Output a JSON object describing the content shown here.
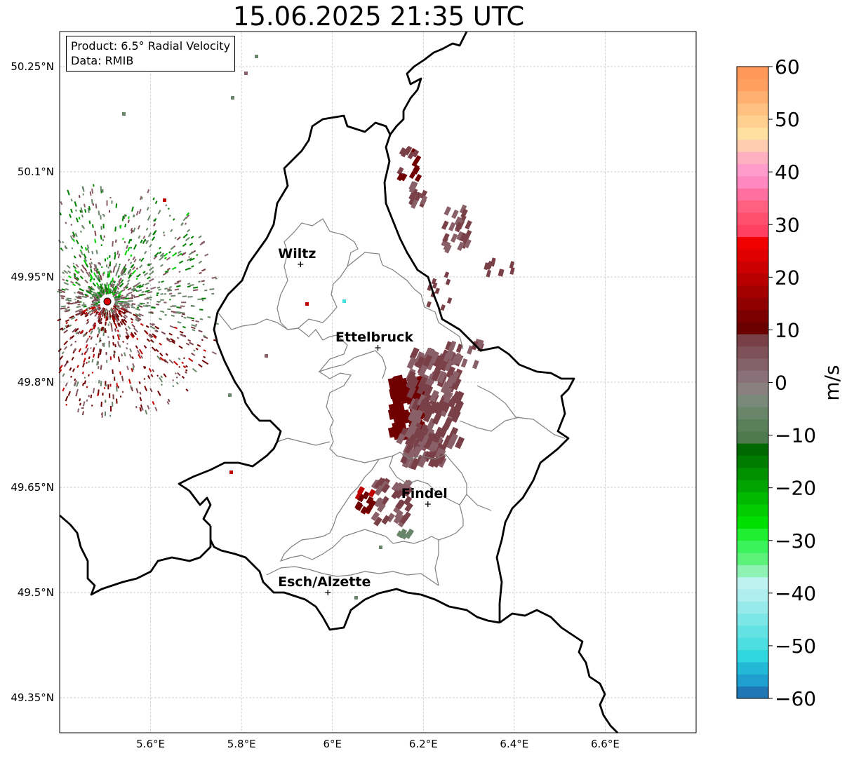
{
  "title": "15.06.2025 21:35 UTC",
  "info_box": {
    "product": "Product: 6.5° Radial Velocity",
    "data_source": "Data: RMIB"
  },
  "axes": {
    "lon_ticks": [
      "5.6°E",
      "5.8°E",
      "6°E",
      "6.2°E",
      "6.4°E",
      "6.6°E"
    ],
    "lat_ticks": [
      "50.25°N",
      "50.1°N",
      "49.95°N",
      "49.8°N",
      "49.65°N",
      "49.5°N",
      "49.35°N"
    ],
    "lon_values": [
      5.6,
      5.8,
      6.0,
      6.2,
      6.4,
      6.6
    ],
    "lat_values": [
      50.25,
      50.1,
      49.95,
      49.8,
      49.65,
      49.5,
      49.35
    ],
    "lon_range": [
      5.4,
      6.8
    ],
    "lat_range": [
      49.3,
      50.3
    ],
    "grid": true
  },
  "cities": [
    {
      "name": "Wiltz",
      "lon": 5.93,
      "lat": 49.968
    },
    {
      "name": "Ettelbruck",
      "lon": 6.1,
      "lat": 49.849
    },
    {
      "name": "Findel",
      "lon": 6.21,
      "lat": 49.626
    },
    {
      "name": "Esch/Alzette",
      "lon": 5.99,
      "lat": 49.5
    }
  ],
  "radar_site": {
    "lon": 5.505,
    "lat": 49.915,
    "color": "#e00000"
  },
  "colorbar": {
    "label": "m/s",
    "min": -60,
    "max": 60,
    "ticks": [
      "60",
      "50",
      "40",
      "30",
      "20",
      "10",
      "0",
      "−10",
      "−20",
      "−30",
      "−40",
      "−50",
      "−60"
    ],
    "tick_values": [
      60,
      50,
      40,
      30,
      20,
      10,
      0,
      -10,
      -20,
      -30,
      -40,
      -50,
      -60
    ],
    "colors_bottom_to_top": [
      "#1f77b4",
      "#1f9fd0",
      "#22b8d6",
      "#2fd6de",
      "#4cdee0",
      "#62e2e2",
      "#7de6e6",
      "#97eaea",
      "#aeeeee",
      "#bef2f0",
      "#8ef2b4",
      "#5cf27a",
      "#3af25a",
      "#20ee30",
      "#00e000",
      "#00cc00",
      "#00b800",
      "#00a400",
      "#009000",
      "#007c00",
      "#006800",
      "#4f7a4f",
      "#5a805a",
      "#6a866a",
      "#7a8a7a",
      "#8a8080",
      "#8a7078",
      "#846068",
      "#7e5058",
      "#7a4048",
      "#6a0000",
      "#7c0000",
      "#900000",
      "#a40000",
      "#b80000",
      "#cc0000",
      "#e00000",
      "#f00000",
      "#ff4060",
      "#ff5070",
      "#ff6080",
      "#ff70a0",
      "#ff88c0",
      "#ff9ccc",
      "#ffb0c0",
      "#ffccb0",
      "#ffe0a0",
      "#ffd090",
      "#ffc080",
      "#ffb070",
      "#ffa060",
      "#ff9858"
    ]
  },
  "velocity_colors": {
    "dark_red": "#700000",
    "red": "#c00000",
    "muted_red": "#7a4048",
    "mauve": "#8a6068",
    "grey_green": "#6a866a",
    "green": "#008000",
    "bright_green": "#00d000",
    "cyan": "#40e0e0"
  },
  "map_colors": {
    "border": "#000000",
    "district": "#808080",
    "grid": "#c0c0c0"
  }
}
